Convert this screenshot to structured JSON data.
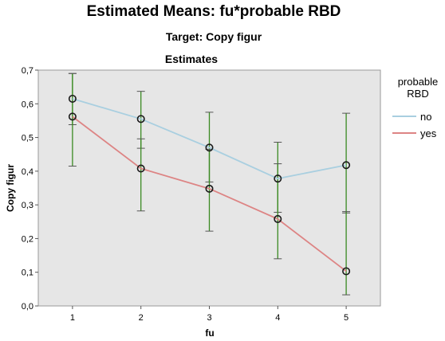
{
  "chart_data": {
    "type": "line",
    "title": "Estimated Means: fu*probable RBD",
    "subtitle": "Target: Copy figur",
    "plot_title": "Estimates",
    "xlabel": "fu",
    "ylabel": "Copy figur",
    "x": [
      "1",
      "2",
      "3",
      "4",
      "5"
    ],
    "ylim": [
      0,
      0.7
    ],
    "yticks": [
      "0,0",
      "0,1",
      "0,2",
      "0,3",
      "0,4",
      "0,5",
      "0,6",
      "0,7"
    ],
    "legend": {
      "title_lines": [
        "probable",
        "RBD"
      ],
      "position": "right"
    },
    "series": [
      {
        "name": "no",
        "color": "#a9cfe0",
        "values": [
          0.615,
          0.555,
          0.47,
          0.378,
          0.418
        ],
        "error_low": [
          0.538,
          0.468,
          0.368,
          0.278,
          0.276
        ],
        "error_high": [
          0.69,
          0.637,
          0.575,
          0.486,
          0.572
        ]
      },
      {
        "name": "yes",
        "color": "#dd8484",
        "values": [
          0.562,
          0.408,
          0.348,
          0.258,
          0.103
        ],
        "error_low": [
          0.415,
          0.282,
          0.222,
          0.14,
          0.033
        ],
        "error_high": [
          0.69,
          0.496,
          0.465,
          0.422,
          0.28
        ]
      }
    ],
    "errorbar_color": "#3a8a22",
    "plot_background": "#e6e6e6"
  }
}
